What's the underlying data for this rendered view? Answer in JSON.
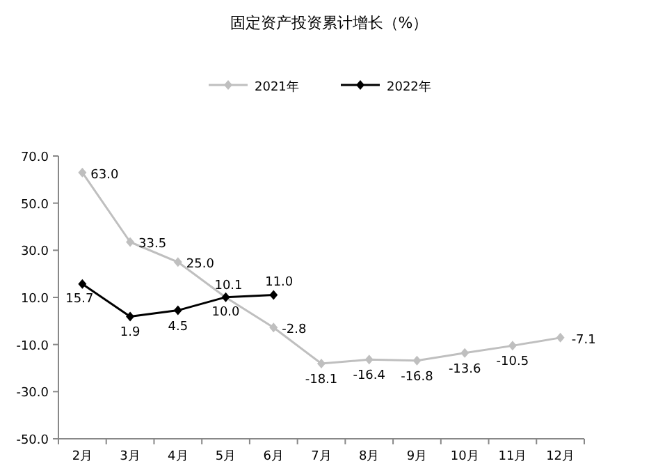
{
  "chart_data": {
    "type": "line",
    "title": "固定资产投资累计增长（%）",
    "categories": [
      "2月",
      "3月",
      "4月",
      "5月",
      "6月",
      "7月",
      "8月",
      "9月",
      "10月",
      "11月",
      "12月"
    ],
    "series": [
      {
        "name": "2021年",
        "color": "#bfbfbf",
        "values": [
          63.0,
          33.5,
          25.0,
          10.0,
          -2.8,
          -18.1,
          -16.4,
          -16.8,
          -13.6,
          -10.5,
          -7.1
        ],
        "value_labels": [
          "63.0",
          "33.5",
          "25.0",
          "10.0",
          "-2.8",
          "-18.1",
          "-16.4",
          "-16.8",
          "-13.6",
          "-10.5",
          "-7.1"
        ]
      },
      {
        "name": "2022年",
        "color": "#000000",
        "values": [
          15.7,
          1.9,
          4.5,
          10.1,
          11.0,
          null,
          null,
          null,
          null,
          null,
          null
        ],
        "value_labels": [
          "15.7",
          "1.9",
          "4.5",
          "10.1",
          "11.0",
          null,
          null,
          null,
          null,
          null,
          null
        ]
      }
    ],
    "ylim": [
      -50,
      70
    ],
    "yticks": [
      {
        "value": -50,
        "label": "-50.0"
      },
      {
        "value": -30,
        "label": "-30.0"
      },
      {
        "value": -10,
        "label": "-10.0"
      },
      {
        "value": 10,
        "label": "10.0"
      },
      {
        "value": 30,
        "label": "30.0"
      },
      {
        "value": 50,
        "label": "50.0"
      },
      {
        "value": 70,
        "label": "70.0"
      }
    ],
    "grid": false,
    "legend": "top",
    "marker": "diamond",
    "line_style": "solid"
  }
}
